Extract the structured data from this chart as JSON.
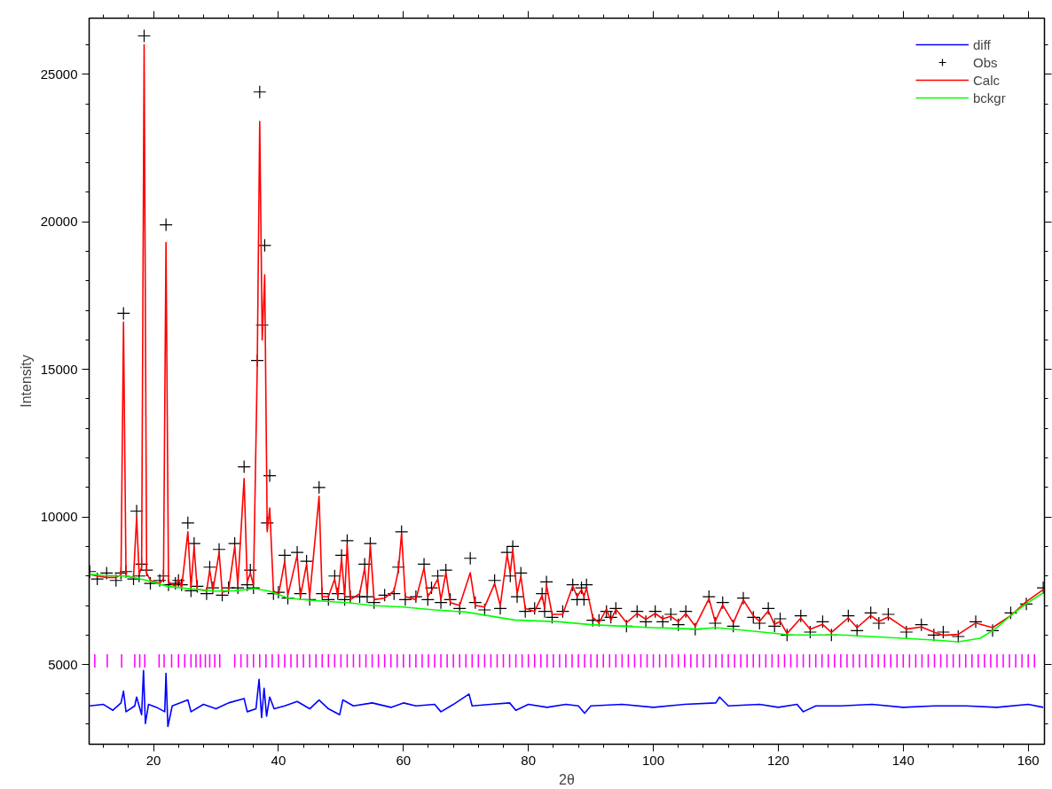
{
  "chart_data": {
    "type": "line",
    "xlabel": "2θ",
    "ylabel": "Intensity",
    "xlim": [
      9.7,
      162.6
    ],
    "ylim": [
      2300,
      26900
    ],
    "xticks": [
      {
        "value": 12,
        "label": null
      },
      {
        "value": 16,
        "label": null
      },
      20,
      {
        "value": 24,
        "label": null
      },
      {
        "value": 28,
        "label": null
      },
      {
        "value": 32,
        "label": null
      },
      {
        "value": 36,
        "label": null
      },
      40,
      {
        "value": 44,
        "label": null
      },
      {
        "value": 48,
        "label": null
      },
      {
        "value": 52,
        "label": null
      },
      {
        "value": 56,
        "label": null
      },
      60,
      {
        "value": 64,
        "label": null
      },
      {
        "value": 68,
        "label": null
      },
      {
        "value": 72,
        "label": null
      },
      {
        "value": 76,
        "label": null
      },
      80,
      {
        "value": 84,
        "label": null
      },
      {
        "value": 88,
        "label": null
      },
      {
        "value": 92,
        "label": null
      },
      {
        "value": 96,
        "label": null
      },
      100,
      {
        "value": 104,
        "label": null
      },
      {
        "value": 108,
        "label": null
      },
      {
        "value": 112,
        "label": null
      },
      {
        "value": 116,
        "label": null
      },
      120,
      {
        "value": 124,
        "label": null
      },
      {
        "value": 128,
        "label": null
      },
      {
        "value": 132,
        "label": null
      },
      {
        "value": 136,
        "label": null
      },
      140,
      {
        "value": 144,
        "label": null
      },
      {
        "value": 148,
        "label": null
      },
      {
        "value": 152,
        "label": null
      },
      {
        "value": 156,
        "label": null
      },
      160
    ],
    "yticks": [
      {
        "value": 3000,
        "label": null
      },
      {
        "value": 4000,
        "label": null
      },
      5000,
      {
        "value": 6000,
        "label": null
      },
      {
        "value": 7000,
        "label": null
      },
      {
        "value": 8000,
        "label": null
      },
      {
        "value": 9000,
        "label": null
      },
      10000,
      {
        "value": 11000,
        "label": null
      },
      {
        "value": 12000,
        "label": null
      },
      {
        "value": 13000,
        "label": null
      },
      {
        "value": 14000,
        "label": null
      },
      15000,
      {
        "value": 16000,
        "label": null
      },
      {
        "value": 17000,
        "label": null
      },
      {
        "value": 18000,
        "label": null
      },
      {
        "value": 19000,
        "label": null
      },
      20000,
      {
        "value": 21000,
        "label": null
      },
      {
        "value": 22000,
        "label": null
      },
      {
        "value": 23000,
        "label": null
      },
      {
        "value": 24000,
        "label": null
      },
      25000,
      {
        "value": 26000,
        "label": null
      }
    ],
    "grid": false,
    "legend": "top right",
    "line_style": "solid",
    "series": [
      {
        "name": "diff",
        "color": "#0000ff",
        "x": [
          9.8,
          12,
          13.5,
          14.8,
          15.2,
          15.6,
          17,
          17.3,
          18.1,
          18.4,
          18.7,
          19.2,
          20.5,
          21.8,
          22.0,
          22.3,
          23,
          25.5,
          26,
          28,
          30,
          32,
          34.5,
          35,
          36.4,
          36.9,
          37.3,
          37.7,
          38.1,
          38.6,
          39.3,
          41,
          43,
          45,
          46.5,
          48,
          49.8,
          50.3,
          52,
          55,
          58,
          60,
          62,
          65,
          66,
          68,
          70.5,
          71,
          74,
          77,
          78,
          80,
          83,
          86,
          88,
          89,
          90,
          95,
          100,
          105,
          110,
          110.6,
          112,
          117,
          120,
          123,
          124,
          126,
          130,
          135,
          140,
          145,
          150,
          155,
          160,
          162.4
        ],
        "values": [
          3600,
          3650,
          3450,
          3700,
          4100,
          3400,
          3600,
          3900,
          3300,
          4800,
          3000,
          3650,
          3550,
          3400,
          4700,
          2900,
          3600,
          3800,
          3400,
          3650,
          3500,
          3700,
          3850,
          3400,
          3500,
          4500,
          3200,
          4200,
          3250,
          3900,
          3500,
          3600,
          3750,
          3500,
          3800,
          3500,
          3300,
          3800,
          3600,
          3700,
          3550,
          3700,
          3600,
          3650,
          3400,
          3650,
          4000,
          3600,
          3650,
          3700,
          3450,
          3650,
          3550,
          3650,
          3600,
          3350,
          3600,
          3650,
          3550,
          3650,
          3700,
          3900,
          3600,
          3650,
          3550,
          3650,
          3400,
          3600,
          3600,
          3650,
          3550,
          3600,
          3600,
          3550,
          3650,
          3550
        ]
      },
      {
        "name": "Obs",
        "type": "scatter",
        "marker": "cross",
        "color": "#000000",
        "x": [
          9.8,
          11,
          12.5,
          14,
          14.8,
          15.2,
          15.6,
          16.8,
          17.3,
          17.7,
          18.1,
          18.5,
          18.9,
          19.5,
          21,
          21.6,
          22.0,
          22.4,
          23.5,
          24,
          24.5,
          25.5,
          26,
          26.5,
          27,
          28.5,
          29,
          29.5,
          30.5,
          31,
          32,
          33,
          33.5,
          34.5,
          35,
          35.5,
          36,
          36.6,
          37,
          37.4,
          37.8,
          38.2,
          38.6,
          39.2,
          40,
          41,
          41.5,
          43,
          43.5,
          44.5,
          45,
          46.5,
          47,
          48,
          49,
          49.5,
          50.1,
          50.6,
          51,
          51.5,
          53,
          53.8,
          54.2,
          54.7,
          55.3,
          57,
          58.5,
          59.2,
          59.7,
          60.3,
          62,
          63.3,
          63.9,
          64.5,
          65.5,
          66,
          66.8,
          67.5,
          69,
          70.7,
          71.5,
          73,
          74.6,
          75.5,
          76.6,
          77.1,
          77.5,
          78.2,
          78.8,
          79.5,
          81,
          82.2,
          82.6,
          82.9,
          83.8,
          85.5,
          87.1,
          87.8,
          88.5,
          88.9,
          89.3,
          90.3,
          91.3,
          92.5,
          93.2,
          94,
          95.7,
          97.4,
          98.8,
          100.3,
          101.5,
          102.8,
          104,
          105.2,
          106.7,
          108.9,
          109.9,
          111.1,
          112.8,
          114.4,
          116,
          117,
          118.4,
          119.4,
          120.3,
          121.4,
          123.6,
          125.1,
          127.1,
          128.5,
          131.2,
          132.6,
          134.8,
          136.1,
          137.6,
          140.5,
          142.9,
          144.9,
          146.4,
          148.8,
          151.6,
          154.3,
          157.2,
          159.7,
          162.4
        ],
        "values": [
          8150,
          7900,
          8100,
          7850,
          8100,
          16900,
          8150,
          7900,
          10200,
          8000,
          8400,
          26300,
          8200,
          7750,
          7850,
          8000,
          19900,
          7700,
          7750,
          7850,
          7700,
          9800,
          7500,
          9100,
          7650,
          7400,
          8300,
          7600,
          8900,
          7350,
          7600,
          9100,
          7600,
          11700,
          7700,
          8200,
          7600,
          15300,
          24400,
          16500,
          19200,
          9800,
          11400,
          7400,
          7450,
          8700,
          7250,
          8800,
          7400,
          8500,
          7200,
          11000,
          7400,
          7200,
          8000,
          7400,
          8700,
          7200,
          9200,
          7300,
          7300,
          8400,
          7300,
          9100,
          7100,
          7350,
          7400,
          8300,
          9500,
          7200,
          7300,
          8400,
          7200,
          7600,
          8000,
          7100,
          8200,
          7200,
          6900,
          8600,
          7100,
          6850,
          7850,
          6900,
          8800,
          8000,
          9000,
          7300,
          8100,
          6800,
          6900,
          7400,
          6800,
          7800,
          6600,
          6800,
          7700,
          7200,
          7600,
          7200,
          7700,
          6500,
          6500,
          6800,
          6600,
          6900,
          6300,
          6800,
          6450,
          6800,
          6450,
          6700,
          6350,
          6800,
          6200,
          7300,
          6400,
          7100,
          6300,
          7250,
          6600,
          6400,
          6900,
          6300,
          6550,
          6000,
          6650,
          6100,
          6450,
          6000,
          6650,
          6150,
          6750,
          6400,
          6700,
          6100,
          6350,
          6000,
          6100,
          5950,
          6450,
          6150,
          6750,
          7050,
          7600
        ]
      },
      {
        "name": "Calc",
        "color": "#ff0000",
        "x": [
          9.8,
          11,
          12.5,
          14,
          14.8,
          15.2,
          15.6,
          16.8,
          17.3,
          17.7,
          18.1,
          18.5,
          18.9,
          19.5,
          21,
          21.6,
          22.0,
          22.4,
          23.5,
          24,
          24.5,
          25.5,
          26,
          26.5,
          27,
          28.5,
          29,
          29.5,
          30.5,
          31,
          32,
          33,
          33.5,
          34.5,
          35,
          35.5,
          36,
          36.6,
          37,
          37.4,
          37.8,
          38.2,
          38.6,
          39.2,
          40,
          41,
          41.5,
          43,
          43.5,
          44.5,
          45,
          46.5,
          47,
          48,
          49,
          49.5,
          50.1,
          50.6,
          51,
          51.5,
          53,
          53.8,
          54.2,
          54.7,
          55.3,
          57,
          58.5,
          59.2,
          59.7,
          60.3,
          62,
          63.3,
          63.9,
          64.5,
          65.5,
          66,
          66.8,
          67.5,
          69,
          70.7,
          71.5,
          73,
          74.6,
          75.5,
          76.6,
          77.1,
          77.5,
          78.2,
          78.8,
          79.5,
          81,
          82.2,
          82.6,
          82.9,
          83.8,
          85.5,
          87.1,
          87.8,
          88.5,
          88.9,
          89.3,
          90.3,
          91.3,
          92.5,
          93.2,
          94,
          95.7,
          97.4,
          98.8,
          100.3,
          101.5,
          102.8,
          104,
          105.2,
          106.7,
          108.9,
          109.9,
          111.1,
          112.8,
          114.4,
          116,
          117,
          118.4,
          119.4,
          120.3,
          121.4,
          123.6,
          125.1,
          127.1,
          128.5,
          131.2,
          132.6,
          134.8,
          136.1,
          137.6,
          140.5,
          142.9,
          144.9,
          146.4,
          148.8,
          151.6,
          154.3,
          157.2,
          159.7,
          162.4
        ],
        "values": [
          8050,
          8000,
          7950,
          7950,
          8050,
          16600,
          8000,
          7950,
          10000,
          8050,
          8300,
          26000,
          8100,
          7850,
          7750,
          7900,
          19300,
          7800,
          7650,
          7900,
          7600,
          9500,
          7600,
          9000,
          7550,
          7500,
          8200,
          7500,
          8800,
          7450,
          7500,
          9000,
          7700,
          11300,
          7800,
          8100,
          7700,
          15000,
          23400,
          16000,
          18200,
          9500,
          10300,
          7500,
          7350,
          8500,
          7350,
          8700,
          7300,
          8400,
          7300,
          10700,
          7300,
          7300,
          7900,
          7300,
          8600,
          7300,
          9070,
          7200,
          7400,
          8270,
          7400,
          9040,
          7200,
          7250,
          7500,
          8200,
          9440,
          7300,
          7200,
          8270,
          7300,
          7500,
          7900,
          7200,
          8110,
          7100,
          7000,
          8110,
          7000,
          6950,
          7740,
          7000,
          8730,
          8100,
          8890,
          7400,
          7990,
          6900,
          6800,
          7340,
          6900,
          7690,
          6700,
          6700,
          7660,
          7300,
          7540,
          7300,
          7600,
          6600,
          6420,
          6880,
          6500,
          6870,
          6420,
          6730,
          6530,
          6730,
          6550,
          6630,
          6450,
          6730,
          6300,
          7230,
          6460,
          7020,
          6410,
          7190,
          6660,
          6460,
          6820,
          6360,
          6460,
          6050,
          6570,
          6200,
          6360,
          6090,
          6580,
          6250,
          6660,
          6460,
          6610,
          6200,
          6270,
          6100,
          5990,
          6020,
          6410,
          6250,
          6660,
          7130,
          7540
        ]
      },
      {
        "name": "bckgr",
        "color": "#00ff00",
        "x": [
          9.8,
          12,
          15.9,
          19,
          22.2,
          26,
          29.9,
          33,
          36.2,
          38.5,
          41.6,
          45,
          48.4,
          51,
          55,
          60,
          65,
          70,
          77.8,
          85,
          90,
          95,
          100,
          107,
          110,
          115,
          121.9,
          130.2,
          140,
          145,
          148.8,
          152.3,
          154.7,
          157.6,
          160,
          162.4
        ],
        "values": [
          8060,
          8020,
          7990,
          7850,
          7650,
          7560,
          7490,
          7500,
          7570,
          7490,
          7250,
          7180,
          7130,
          7100,
          7000,
          6950,
          6850,
          6780,
          6510,
          6450,
          6350,
          6300,
          6250,
          6200,
          6250,
          6150,
          6000,
          6000,
          5890,
          5830,
          5770,
          5890,
          6200,
          6730,
          7100,
          7430
        ]
      },
      {
        "type": "bar",
        "color": "#ff00ff",
        "x": [
          10.6,
          12.6,
          14.9,
          17.0,
          17.8,
          18.6,
          20.9,
          21.7,
          22.9,
          24.0,
          25.0,
          26.0,
          26.8,
          27.5,
          28.3,
          29.0,
          29.8,
          30.6,
          33,
          34,
          35,
          36,
          37,
          38,
          39,
          40,
          41,
          42,
          43,
          44,
          45,
          46,
          47,
          48,
          49,
          50,
          51,
          52,
          53,
          54,
          55,
          56,
          57,
          58,
          59,
          60,
          61,
          62,
          63,
          64,
          65,
          66,
          67,
          68,
          69,
          70,
          71,
          72,
          73,
          74,
          75,
          76,
          77,
          78,
          79,
          80,
          81,
          82,
          83,
          84,
          85,
          86,
          87,
          88,
          89,
          90,
          91,
          92,
          93,
          94,
          95,
          96,
          97,
          98,
          99,
          100,
          101,
          102,
          103,
          104,
          105,
          106,
          107,
          108,
          109,
          110,
          111,
          112,
          113,
          114,
          115,
          116,
          117,
          118,
          119,
          120,
          121,
          122,
          123,
          124,
          125,
          126,
          127,
          128,
          129,
          130,
          131,
          132,
          133,
          134,
          135,
          136,
          137,
          138,
          139,
          140,
          141,
          142,
          143,
          144,
          145,
          146,
          147,
          148,
          149,
          150,
          151,
          152,
          153,
          154,
          155,
          156,
          157,
          158,
          159,
          160,
          161
        ],
        "values": [
          450,
          450,
          450,
          450,
          450,
          450,
          450,
          450,
          450,
          450,
          450,
          450,
          450,
          450,
          450,
          450,
          450,
          450,
          450,
          450,
          450,
          450,
          450,
          450,
          450,
          450,
          450,
          450,
          450,
          450,
          450,
          450,
          450,
          450,
          450,
          450,
          450,
          450,
          450,
          450,
          450,
          450,
          450,
          450,
          450,
          450,
          450,
          450,
          450,
          450,
          450,
          450,
          450,
          450,
          450,
          450,
          450,
          450,
          450,
          450,
          450,
          450,
          450,
          450,
          450,
          450,
          450,
          450,
          450,
          450,
          450,
          450,
          450,
          450,
          450,
          450,
          450,
          450,
          450,
          450,
          450,
          450,
          450,
          450,
          450,
          450,
          450,
          450,
          450,
          450,
          450,
          450,
          450,
          450,
          450,
          450,
          450,
          450,
          450,
          450,
          450,
          450,
          450,
          450,
          450,
          450,
          450,
          450,
          450,
          450,
          450,
          450,
          450,
          450,
          450,
          450,
          450,
          450,
          450,
          450,
          450,
          450,
          450,
          450,
          450,
          450,
          450,
          450,
          450,
          450,
          450,
          450,
          450,
          450,
          450,
          450,
          450,
          450,
          450,
          450,
          450,
          450,
          450,
          450,
          450,
          450,
          450
        ],
        "base": [
          4900,
          4900,
          4900,
          4900,
          4900,
          4900,
          4900,
          4900,
          4900,
          4900,
          4900,
          4900,
          4900,
          4900,
          4900,
          4900,
          4900,
          4900,
          4900,
          4900,
          4900,
          4900,
          4900,
          4900,
          4900,
          4900,
          4900,
          4900,
          4900,
          4900,
          4900,
          4900,
          4900,
          4900,
          4900,
          4900,
          4900,
          4900,
          4900,
          4900,
          4900,
          4900,
          4900,
          4900,
          4900,
          4900,
          4900,
          4900,
          4900,
          4900,
          4900,
          4900,
          4900,
          4900,
          4900,
          4900,
          4900,
          4900,
          4900,
          4900,
          4900,
          4900,
          4900,
          4900,
          4900,
          4900,
          4900,
          4900,
          4900,
          4900,
          4900,
          4900,
          4900,
          4900,
          4900,
          4900,
          4900,
          4900,
          4900,
          4900,
          4900,
          4900,
          4900,
          4900,
          4900,
          4900,
          4900,
          4900,
          4900,
          4900,
          4900,
          4900,
          4900,
          4900,
          4900,
          4900,
          4900,
          4900,
          4900,
          4900,
          4900,
          4900,
          4900,
          4900,
          4900,
          4900,
          4900,
          4900,
          4900,
          4900,
          4900,
          4900,
          4900,
          4900,
          4900,
          4900,
          4900,
          4900,
          4900,
          4900,
          4900,
          4900,
          4900,
          4900,
          4900,
          4900,
          4900,
          4900,
          4900,
          4900,
          4900,
          4900,
          4900,
          4900,
          4900,
          4900,
          4900,
          4900,
          4900,
          4900,
          4900,
          4900,
          4900,
          4900,
          4900,
          4900,
          4900
        ]
      }
    ]
  }
}
